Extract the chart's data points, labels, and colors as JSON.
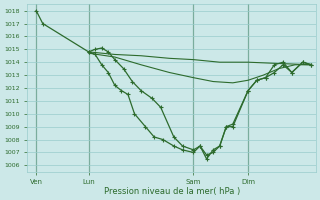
{
  "xlabel": "Pression niveau de la mer( hPa )",
  "ylim": [
    1005.5,
    1018.5
  ],
  "yticks": [
    1006,
    1007,
    1008,
    1009,
    1010,
    1011,
    1012,
    1013,
    1014,
    1015,
    1016,
    1017,
    1018
  ],
  "bg_color": "#cce8e8",
  "grid_color": "#99cccc",
  "line_color": "#2d6b2d",
  "vline_color": "#336633",
  "xlim": [
    0,
    264
  ],
  "xtick_pos": [
    8,
    56,
    152,
    202
  ],
  "xtick_labels": [
    "Ven",
    "Lun",
    "Sam",
    "Dim"
  ],
  "vline_x": [
    8,
    56,
    152,
    202
  ],
  "line1_x": [
    8,
    14,
    56,
    62,
    68,
    74,
    80,
    86,
    92,
    98,
    108,
    116,
    124,
    134,
    142,
    152,
    158,
    164,
    170,
    176,
    182,
    188,
    202,
    210,
    218,
    226,
    234,
    242,
    252,
    260
  ],
  "line1_y": [
    1018,
    1017,
    1014.8,
    1014.6,
    1013.8,
    1013.2,
    1012.2,
    1011.8,
    1011.5,
    1010.0,
    1009.0,
    1008.2,
    1008.0,
    1007.5,
    1007.2,
    1007.0,
    1007.5,
    1006.5,
    1007.2,
    1007.5,
    1009.0,
    1009.0,
    1011.8,
    1012.6,
    1012.8,
    1013.8,
    1014.0,
    1013.2,
    1014.0,
    1013.8
  ],
  "line2_x": [
    56,
    62,
    68,
    74,
    80,
    88,
    96,
    104,
    114,
    122,
    134,
    142,
    152,
    158,
    164,
    170,
    176,
    182,
    188,
    202,
    210,
    218,
    226,
    234,
    242,
    252,
    260
  ],
  "line2_y": [
    1014.8,
    1015.0,
    1015.1,
    1014.8,
    1014.2,
    1013.5,
    1012.5,
    1011.8,
    1011.2,
    1010.5,
    1008.2,
    1007.5,
    1007.2,
    1007.5,
    1006.8,
    1007.0,
    1007.5,
    1009.0,
    1009.2,
    1011.8,
    1012.6,
    1012.8,
    1013.2,
    1013.8,
    1013.2,
    1014.0,
    1013.8
  ],
  "line3_x": [
    56,
    80,
    104,
    130,
    152,
    176,
    202,
    230,
    260
  ],
  "line3_y": [
    1014.8,
    1014.6,
    1014.5,
    1014.3,
    1014.2,
    1014.0,
    1014.0,
    1013.9,
    1013.8
  ],
  "line4_x": [
    56,
    80,
    104,
    130,
    152,
    170,
    188,
    202,
    216,
    230,
    245,
    260
  ],
  "line4_y": [
    1014.7,
    1014.4,
    1013.8,
    1013.2,
    1012.8,
    1012.5,
    1012.4,
    1012.6,
    1013.0,
    1013.5,
    1013.8,
    1013.8
  ]
}
